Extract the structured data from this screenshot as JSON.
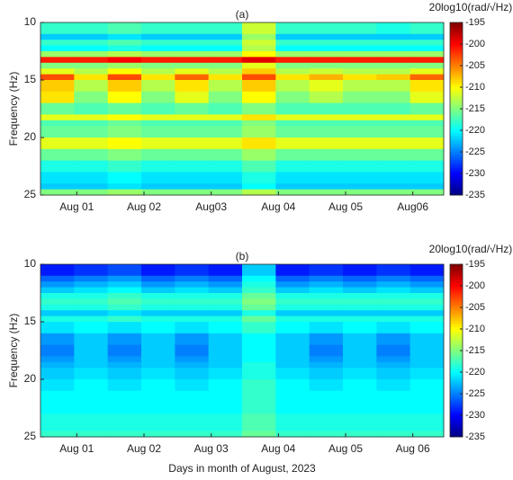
{
  "chart_data": [
    {
      "type": "heatmap",
      "title": "(a)",
      "ylabel": "Frequency (Hz)",
      "colormap": "jet",
      "colorbar_label": "20log10(rad/√Hz)",
      "xlim": [
        0.46,
        6.46
      ],
      "ylim": [
        10,
        25
      ],
      "y_reversed": true,
      "xticks": [
        {
          "value": 1,
          "label": "Aug 01"
        },
        {
          "value": 2,
          "label": "Aug 02"
        },
        {
          "value": 3,
          "label": "Aug03"
        },
        {
          "value": 4,
          "label": "Aug 04"
        },
        {
          "value": 5,
          "label": "Aug 05"
        },
        {
          "value": 6,
          "label": "Aug06"
        }
      ],
      "yticks": [
        10,
        15,
        20,
        25
      ],
      "clim": [
        -235,
        -195
      ],
      "cticks": [
        -235,
        -230,
        -225,
        -220,
        -215,
        -210,
        -205,
        -200,
        -195
      ],
      "x_edges": [
        0.46,
        0.96,
        1.46,
        1.96,
        2.46,
        2.96,
        3.46,
        3.96,
        4.46,
        4.96,
        5.46,
        5.96,
        6.46
      ],
      "y_edges": [
        10,
        11,
        11.5,
        12,
        12.5,
        13,
        13.5,
        14,
        14.5,
        15,
        16,
        17,
        18,
        18.5,
        19,
        20,
        21,
        22,
        23,
        24,
        24.5,
        25
      ],
      "z": [
        [
          -218,
          -218,
          -217,
          -218,
          -218,
          -218,
          -212,
          -218,
          -218,
          -218,
          -219,
          -218
        ],
        [
          -222,
          -222,
          -221,
          -222,
          -222,
          -222,
          -214,
          -222,
          -222,
          -222,
          -222,
          -222
        ],
        [
          -218,
          -218,
          -217,
          -218,
          -218,
          -218,
          -212,
          -218,
          -218,
          -218,
          -218,
          -218
        ],
        [
          -220,
          -220,
          -219,
          -220,
          -220,
          -220,
          -213,
          -220,
          -220,
          -220,
          -220,
          -220
        ],
        [
          -214,
          -214,
          -213,
          -214,
          -214,
          -214,
          -210,
          -214,
          -214,
          -214,
          -214,
          -214
        ],
        [
          -201,
          -201,
          -200,
          -201,
          -201,
          -201,
          -199,
          -201,
          -201,
          -201,
          -201,
          -201
        ],
        [
          -215,
          -215,
          -214,
          -215,
          -215,
          -215,
          -211,
          -215,
          -215,
          -215,
          -215,
          -215
        ],
        [
          -211,
          -213,
          -210,
          -213,
          -211,
          -213,
          -208,
          -213,
          -212,
          -213,
          -213,
          -211
        ],
        [
          -203,
          -209,
          -203,
          -209,
          -204,
          -209,
          -203,
          -209,
          -207,
          -209,
          -208,
          -204
        ],
        [
          -208,
          -213,
          -208,
          -213,
          -209,
          -213,
          -208,
          -213,
          -211,
          -213,
          -213,
          -209
        ],
        [
          -209,
          -215,
          -210,
          -215,
          -211,
          -215,
          -210,
          -215,
          -213,
          -215,
          -215,
          -211
        ],
        [
          -216,
          -217,
          -216,
          -217,
          -216,
          -217,
          -215,
          -217,
          -217,
          -217,
          -217,
          -216
        ],
        [
          -211,
          -211,
          -210,
          -211,
          -211,
          -211,
          -209,
          -211,
          -211,
          -211,
          -211,
          -211
        ],
        [
          -217,
          -217,
          -216,
          -217,
          -217,
          -217,
          -215,
          -217,
          -217,
          -217,
          -217,
          -217
        ],
        [
          -216,
          -216,
          -215,
          -216,
          -216,
          -216,
          -214,
          -216,
          -216,
          -216,
          -216,
          -216
        ],
        [
          -211,
          -211,
          -210,
          -211,
          -211,
          -211,
          -209,
          -211,
          -211,
          -211,
          -211,
          -211
        ],
        [
          -216,
          -216,
          -215,
          -216,
          -216,
          -216,
          -214,
          -216,
          -216,
          -216,
          -216,
          -216
        ],
        [
          -219,
          -219,
          -218,
          -219,
          -219,
          -219,
          -217,
          -219,
          -219,
          -219,
          -219,
          -219
        ],
        [
          -221,
          -221,
          -220,
          -221,
          -221,
          -221,
          -219,
          -221,
          -221,
          -221,
          -221,
          -221
        ],
        [
          -222,
          -222,
          -221,
          -222,
          -222,
          -222,
          -220,
          -222,
          -222,
          -222,
          -222,
          -222
        ],
        [
          -215,
          -215,
          -214,
          -215,
          -215,
          -215,
          -213,
          -215,
          -215,
          -215,
          -215,
          -215
        ]
      ]
    },
    {
      "type": "heatmap",
      "title": "(b)",
      "ylabel": "Frequency (Hz)",
      "xlabel": "Days in month of August, 2023",
      "colormap": "jet",
      "colorbar_label": "20log10(rad/√Hz)",
      "xlim": [
        0.46,
        6.46
      ],
      "ylim": [
        10,
        25
      ],
      "y_reversed": true,
      "xticks": [
        {
          "value": 1,
          "label": "Aug 01"
        },
        {
          "value": 2,
          "label": "Aug 02"
        },
        {
          "value": 3,
          "label": "Aug 03"
        },
        {
          "value": 4,
          "label": "Aug 04"
        },
        {
          "value": 5,
          "label": "Aug 05"
        },
        {
          "value": 6,
          "label": "Aug 06"
        }
      ],
      "yticks": [
        10,
        15,
        20,
        25
      ],
      "clim": [
        -235,
        -195
      ],
      "cticks": [
        -235,
        -230,
        -225,
        -220,
        -215,
        -210,
        -205,
        -200,
        -195
      ],
      "x_edges": [
        0.46,
        0.96,
        1.46,
        1.96,
        2.46,
        2.96,
        3.46,
        3.96,
        4.46,
        4.96,
        5.46,
        5.96,
        6.46
      ],
      "y_edges": [
        10,
        11,
        11.5,
        12,
        12.5,
        13,
        13.5,
        14,
        14.5,
        15,
        16,
        17,
        18,
        18.5,
        19,
        20,
        21,
        22,
        23,
        24,
        24.5,
        25
      ],
      "z": [
        [
          -229,
          -228,
          -227,
          -229,
          -228,
          -229,
          -222,
          -229,
          -228,
          -229,
          -228,
          -229
        ],
        [
          -226,
          -225,
          -224,
          -226,
          -225,
          -226,
          -220,
          -226,
          -225,
          -226,
          -225,
          -226
        ],
        [
          -224,
          -223,
          -222,
          -224,
          -223,
          -224,
          -219,
          -224,
          -223,
          -224,
          -223,
          -224
        ],
        [
          -222,
          -221,
          -220,
          -222,
          -221,
          -222,
          -218,
          -222,
          -221,
          -222,
          -221,
          -222
        ],
        [
          -219,
          -219,
          -218,
          -219,
          -219,
          -219,
          -216,
          -219,
          -219,
          -219,
          -219,
          -219
        ],
        [
          -218,
          -218,
          -217,
          -218,
          -218,
          -218,
          -215,
          -218,
          -218,
          -218,
          -218,
          -218
        ],
        [
          -219,
          -219,
          -218,
          -219,
          -219,
          -219,
          -216,
          -219,
          -219,
          -219,
          -219,
          -219
        ],
        [
          -222,
          -222,
          -221,
          -222,
          -222,
          -222,
          -219,
          -222,
          -222,
          -222,
          -222,
          -222
        ],
        [
          -219,
          -219,
          -218,
          -219,
          -219,
          -219,
          -216,
          -219,
          -219,
          -219,
          -219,
          -219
        ],
        [
          -221,
          -220,
          -221,
          -220,
          -221,
          -220,
          -218,
          -220,
          -221,
          -220,
          -221,
          -220
        ],
        [
          -224,
          -222,
          -224,
          -222,
          -224,
          -222,
          -220,
          -222,
          -224,
          -222,
          -224,
          -222
        ],
        [
          -225,
          -222,
          -225,
          -222,
          -225,
          -222,
          -220,
          -222,
          -225,
          -222,
          -225,
          -222
        ],
        [
          -224,
          -222,
          -224,
          -222,
          -224,
          -222,
          -220,
          -222,
          -224,
          -222,
          -224,
          -222
        ],
        [
          -223,
          -222,
          -223,
          -222,
          -223,
          -222,
          -219,
          -222,
          -223,
          -222,
          -223,
          -222
        ],
        [
          -222,
          -221,
          -222,
          -221,
          -222,
          -221,
          -219,
          -221,
          -222,
          -221,
          -222,
          -221
        ],
        [
          -221,
          -220,
          -221,
          -220,
          -221,
          -220,
          -218,
          -220,
          -221,
          -220,
          -221,
          -220
        ],
        [
          -220,
          -220,
          -220,
          -220,
          -220,
          -220,
          -218,
          -220,
          -220,
          -220,
          -220,
          -220
        ],
        [
          -220,
          -220,
          -220,
          -220,
          -220,
          -220,
          -218,
          -220,
          -220,
          -220,
          -220,
          -220
        ],
        [
          -219,
          -219,
          -219,
          -219,
          -219,
          -219,
          -217,
          -219,
          -219,
          -219,
          -219,
          -219
        ],
        [
          -219,
          -219,
          -219,
          -219,
          -219,
          -219,
          -217,
          -219,
          -219,
          -219,
          -219,
          -219
        ],
        [
          -218,
          -218,
          -218,
          -218,
          -218,
          -218,
          -216,
          -218,
          -218,
          -218,
          -218,
          -218
        ]
      ]
    }
  ]
}
